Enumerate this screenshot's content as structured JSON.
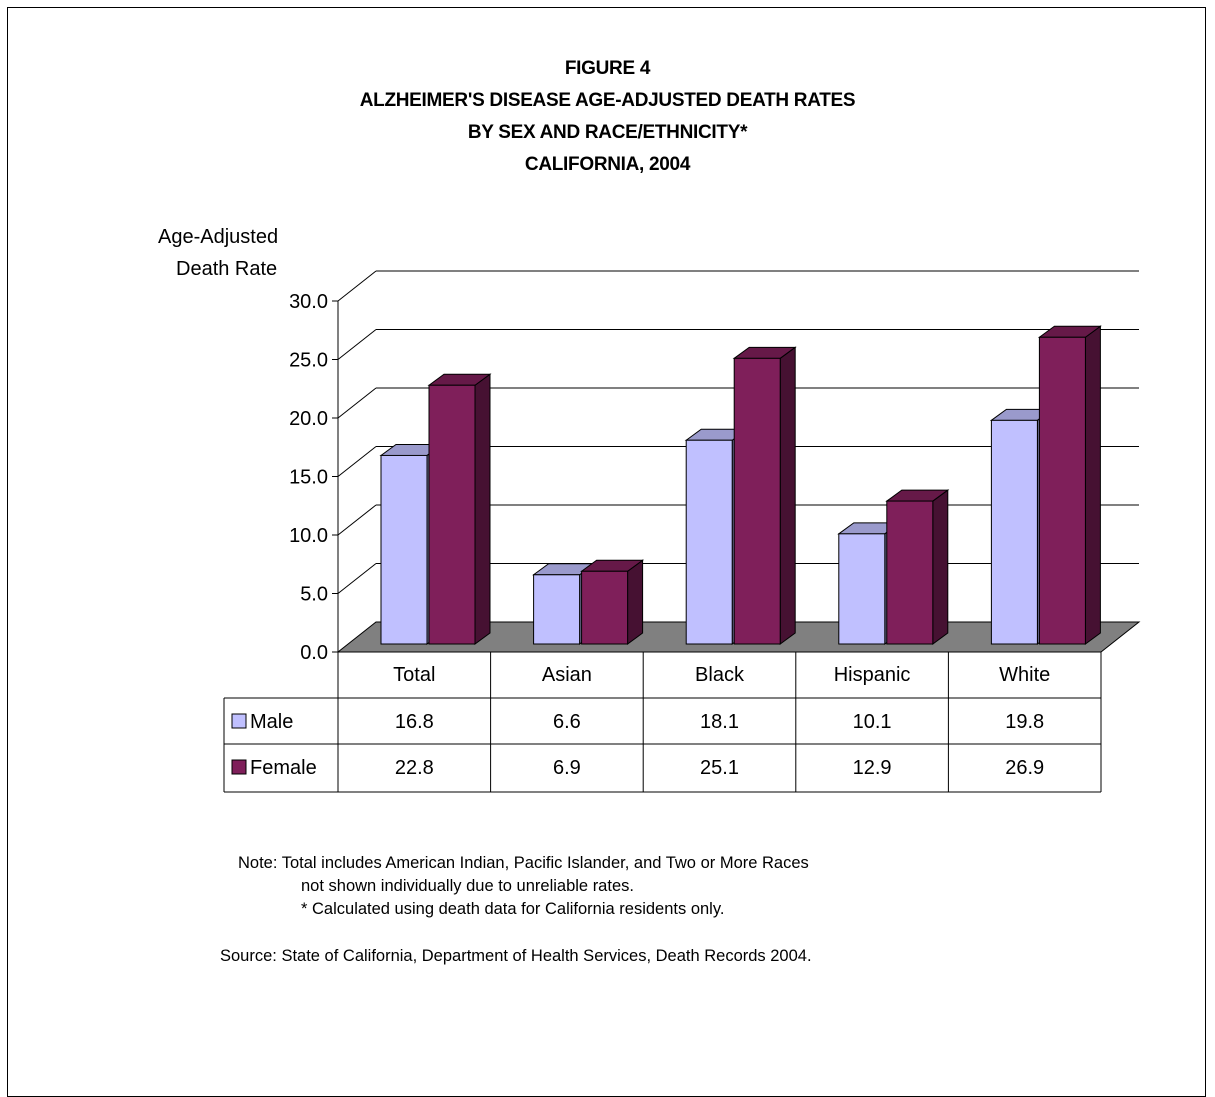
{
  "chart_data": {
    "type": "bar",
    "title": [
      "FIGURE 4",
      "ALZHEIMER'S DISEASE AGE-ADJUSTED DEATH RATES",
      "BY SEX AND RACE/ETHNICITY*",
      "CALIFORNIA, 2004"
    ],
    "ylabel": [
      "Age-Adjusted",
      "Death Rate"
    ],
    "xlabel": "",
    "categories": [
      "Total",
      "Asian",
      "Black",
      "Hispanic",
      "White"
    ],
    "series": [
      {
        "name": "Male",
        "values": [
          16.8,
          6.6,
          18.1,
          10.1,
          19.8
        ],
        "color": "#c0c0ff"
      },
      {
        "name": "Female",
        "values": [
          22.8,
          6.9,
          25.1,
          12.9,
          26.9
        ],
        "color": "#7f1f5a"
      }
    ],
    "value_labels": {
      "Male": [
        "16.8",
        "6.6",
        "18.1",
        "10.1",
        "19.8"
      ],
      "Female": [
        "22.8",
        "6.9",
        "25.1",
        "12.9",
        "26.9"
      ]
    },
    "ylim": [
      0,
      30
    ],
    "yticks": [
      "0.0",
      "5.0",
      "10.0",
      "15.0",
      "20.0",
      "25.0",
      "30.0"
    ],
    "grid": true,
    "style": "3d-clustered-bar-with-data-table",
    "floor_color": "#808080"
  },
  "notes": {
    "line1": "Note:  Total includes American Indian, Pacific Islander, and Two or More Races",
    "line2": "not shown individually due to unreliable rates.",
    "line3": "* Calculated using death data for California residents only.",
    "source": "Source: State of California, Department of Health Services, Death Records 2004."
  }
}
